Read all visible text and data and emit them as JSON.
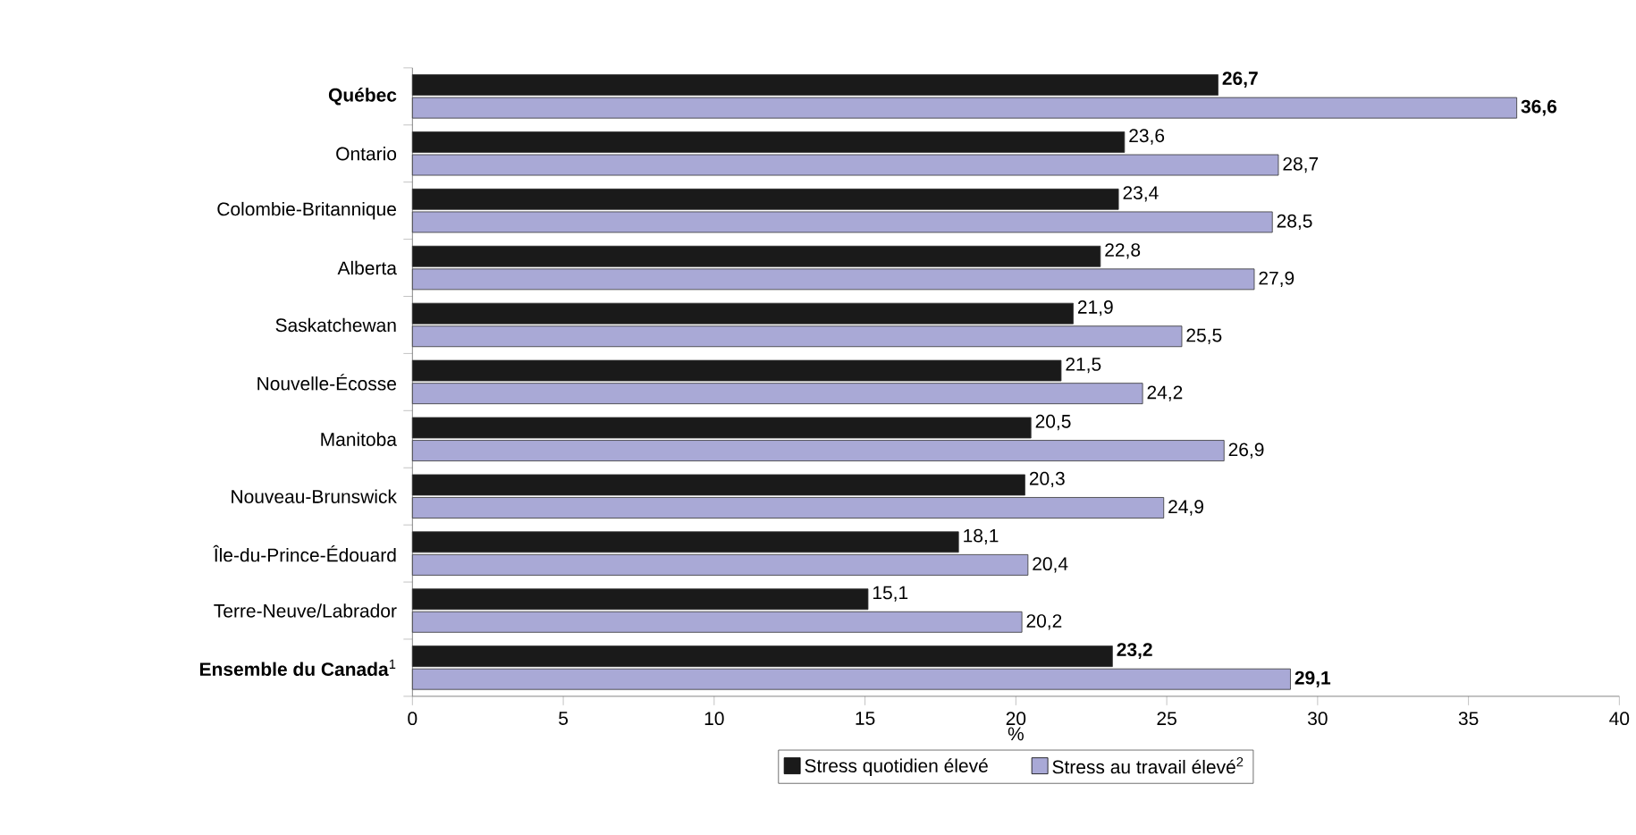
{
  "chart_data": {
    "type": "bar",
    "orientation": "horizontal",
    "xlabel": "%",
    "categories": [
      "**Québec**",
      "Ontario",
      "Colombie-Britannique",
      "Alberta",
      "Saskatchewan",
      "Nouvelle-Écosse",
      "Manitoba",
      "Nouveau-Brunswick",
      "Île-du-Prince-Édouard",
      "Terre-Neuve/Labrador",
      "**Ensemble du Canada**$^{1}$"
    ],
    "series": [
      {
        "name": "Stress quotidien élevé",
        "color": "#1a1a1a",
        "values": [
          26.7,
          23.6,
          23.4,
          22.8,
          21.9,
          21.5,
          20.5,
          20.3,
          18.1,
          15.1,
          23.2
        ],
        "value_labels": [
          "**26,7**",
          "23,6",
          "23,4",
          "22,8",
          "21,9",
          "21,5",
          "20,5",
          "20,3",
          "18,1",
          "15,1",
          "**23,2**"
        ]
      },
      {
        "name": "Stress au travail élevé$^{2}$",
        "color": "#a9a9d6",
        "values": [
          36.6,
          28.7,
          28.5,
          27.9,
          25.5,
          24.2,
          26.9,
          24.9,
          20.4,
          20.2,
          29.1
        ],
        "value_labels": [
          "**36,6**",
          "28,7",
          "28,5",
          "27,9",
          "25,5",
          "24,2",
          "26,9",
          "24,9",
          "20,4",
          "20,2",
          "**29,1**"
        ]
      }
    ],
    "xlim": [
      0,
      40
    ],
    "xticks": [
      0,
      5,
      10,
      15,
      20,
      25,
      30,
      35,
      40
    ],
    "grid": false,
    "legend": "bottom"
  }
}
